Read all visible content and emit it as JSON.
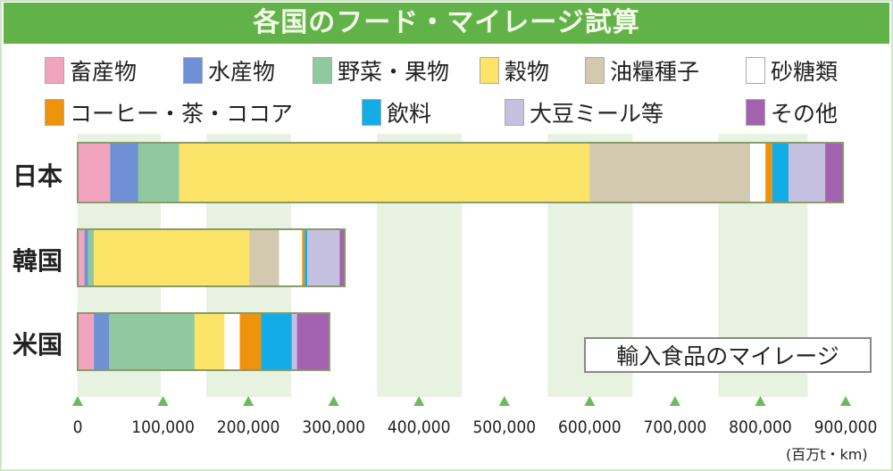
{
  "chart_data": {
    "type": "bar",
    "orientation": "horizontal-stacked",
    "title": "各国のフード・マイレージ試算",
    "annotation": "輸入食品のマイレージ",
    "unit": "(百万t・km)",
    "xlim": [
      0,
      900000
    ],
    "xticks": [
      "0",
      "100,000",
      "200,000",
      "300,000",
      "400,000",
      "500,000",
      "600,000",
      "700,000",
      "800,000",
      "900,000"
    ],
    "categories": [
      "日本",
      "韓国",
      "米国"
    ],
    "legend": "top",
    "series": [
      {
        "name": "畜産物",
        "color": "#f2a3bd",
        "values": [
          38000,
          8000,
          19000
        ]
      },
      {
        "name": "水産物",
        "color": "#6f90d4",
        "values": [
          33000,
          4000,
          18000
        ]
      },
      {
        "name": "野菜・果物",
        "color": "#90c9a0",
        "values": [
          48000,
          7000,
          100000
        ]
      },
      {
        "name": "穀物",
        "color": "#fbe468",
        "values": [
          481000,
          182000,
          35000
        ]
      },
      {
        "name": "油糧種子",
        "color": "#d3c9b0",
        "values": [
          188000,
          35000,
          0
        ]
      },
      {
        "name": "砂糖類",
        "color": "#ffffff",
        "values": [
          18000,
          27000,
          18000
        ]
      },
      {
        "name": "コーヒー・茶・ココア",
        "color": "#ef930c",
        "values": [
          8000,
          3000,
          25000
        ]
      },
      {
        "name": "飲料",
        "color": "#12ade6",
        "values": [
          19000,
          3000,
          36000
        ]
      },
      {
        "name": "大豆ミール等",
        "color": "#c6c0e0",
        "values": [
          43000,
          38000,
          6000
        ]
      },
      {
        "name": "その他",
        "color": "#a262b0",
        "values": [
          21000,
          6000,
          38000
        ]
      }
    ]
  }
}
